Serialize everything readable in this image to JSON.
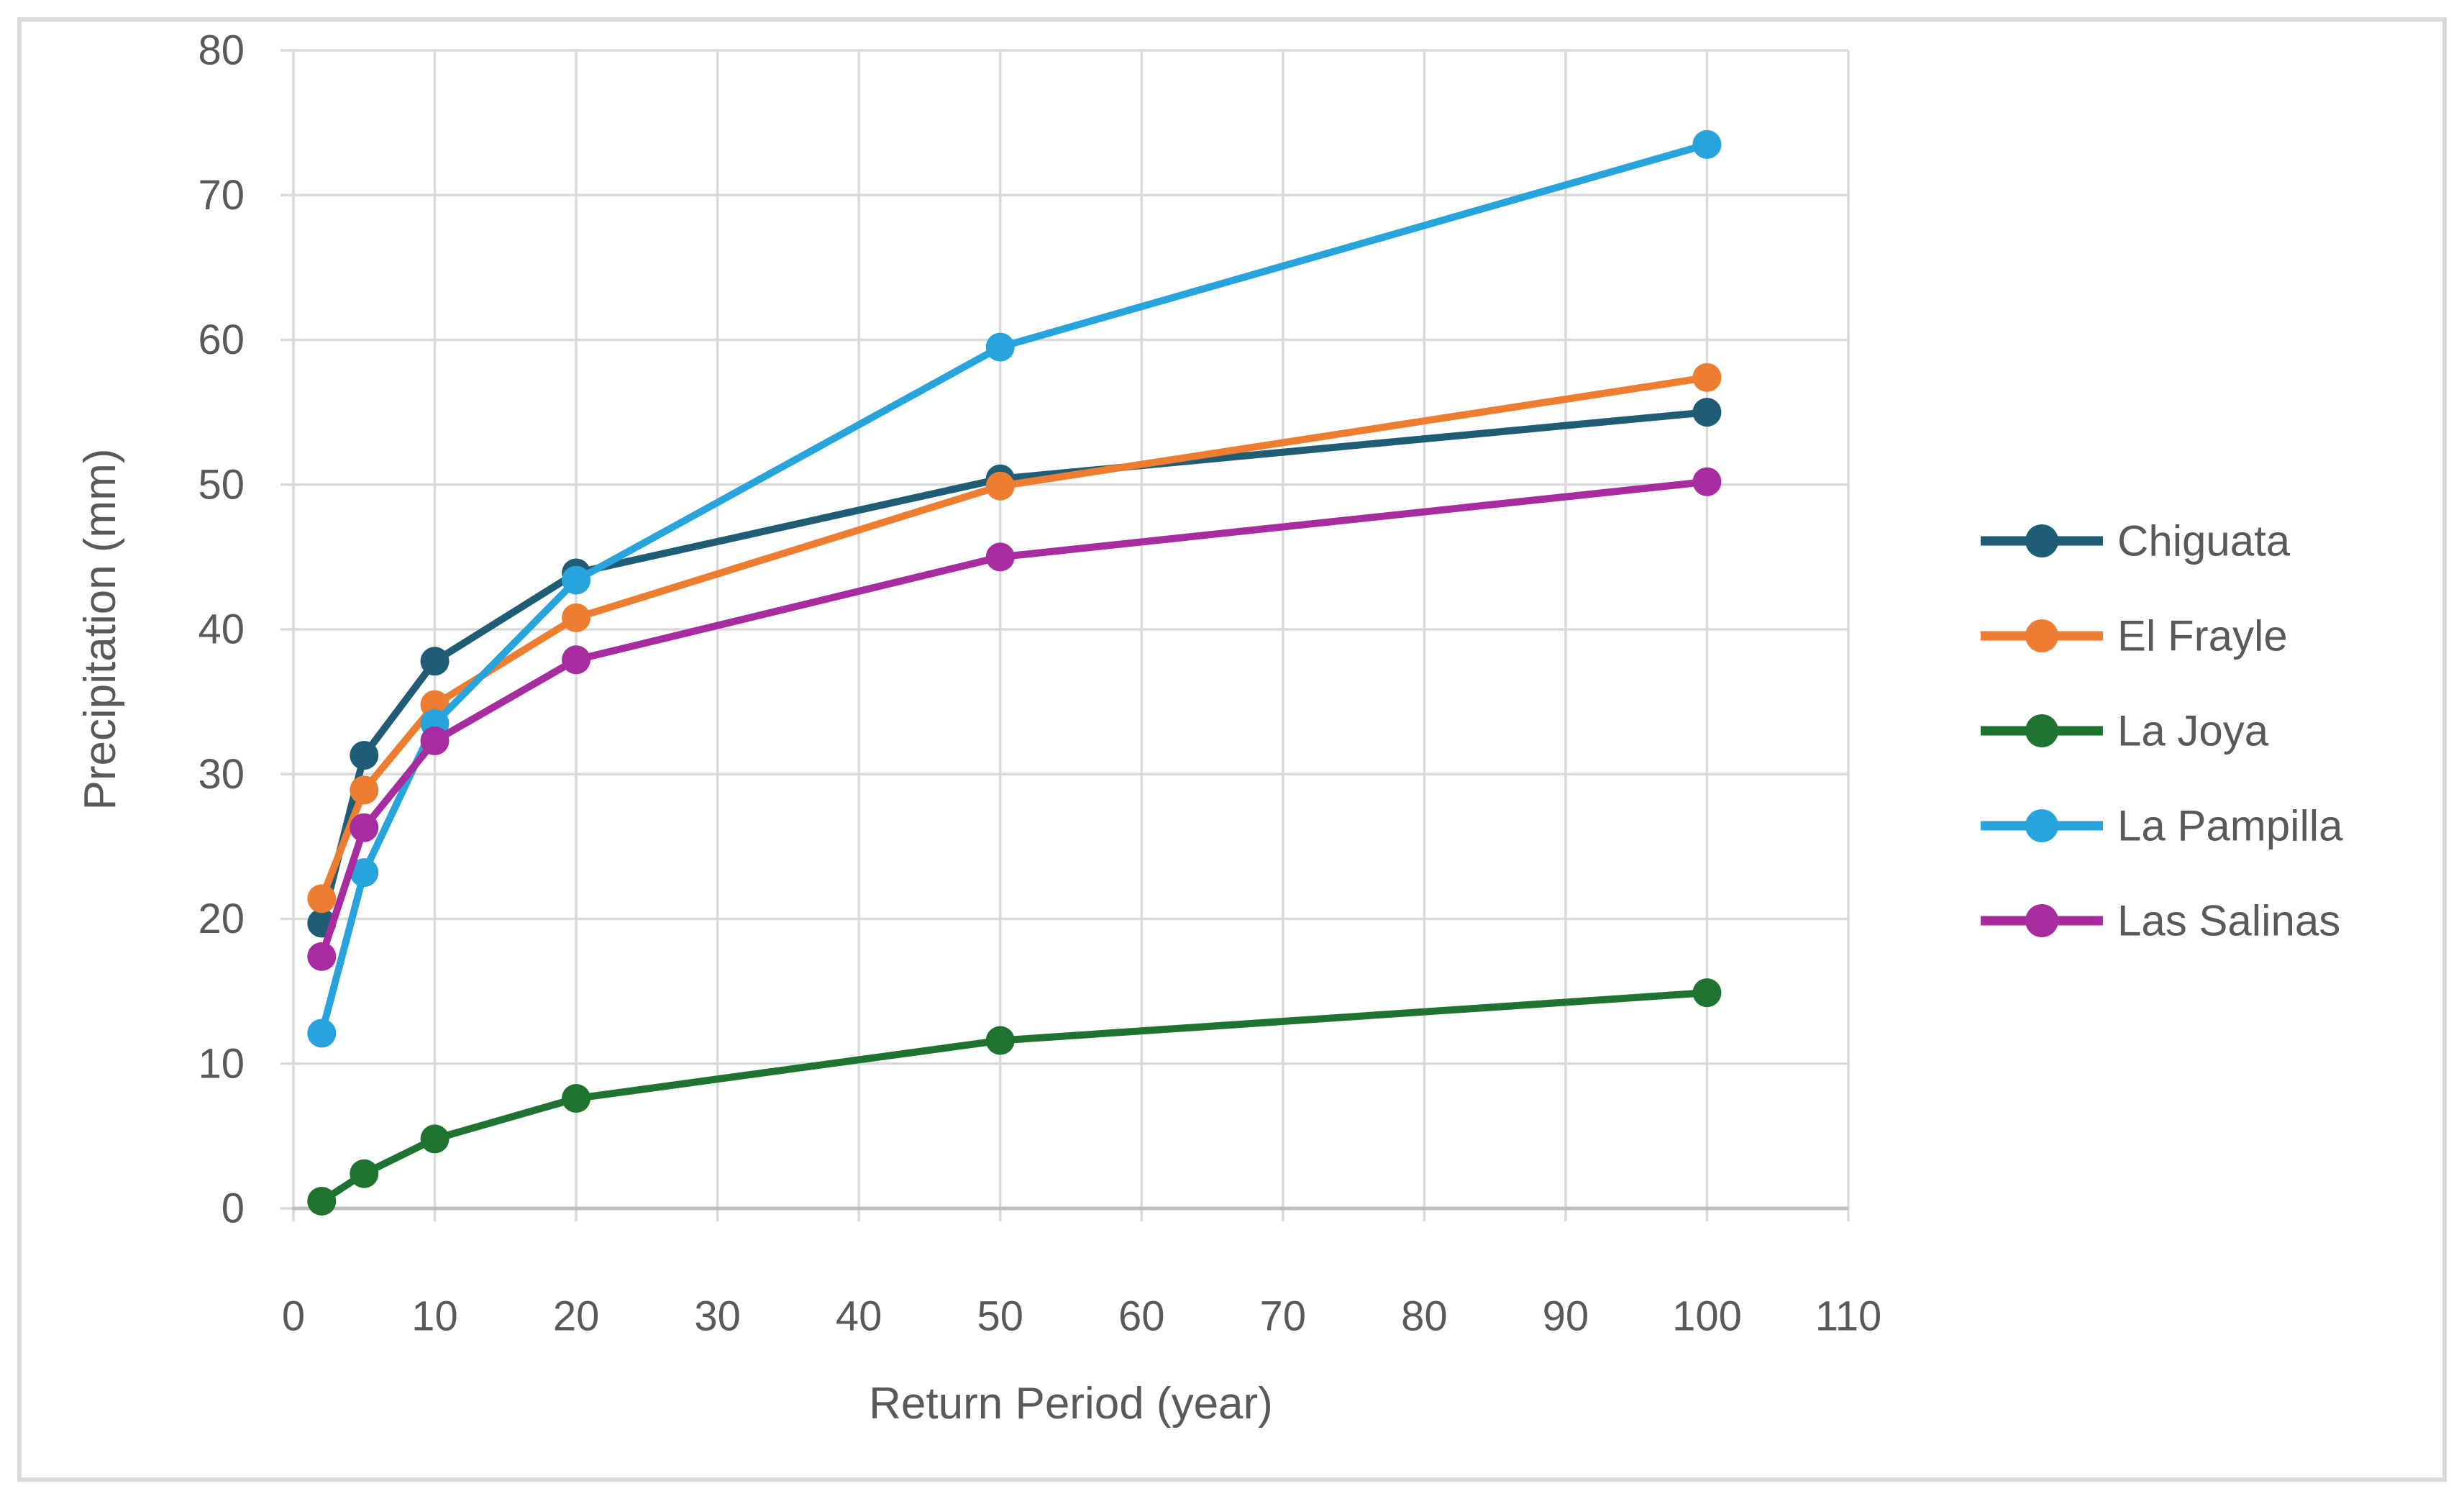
{
  "chart_data": {
    "type": "line",
    "title": "",
    "xlabel": "Return Period (year)",
    "ylabel": "Precipitation (mm)",
    "x": [
      2,
      5,
      10,
      20,
      50,
      100
    ],
    "xlim": [
      0,
      110
    ],
    "ylim": [
      0,
      80
    ],
    "x_ticks": [
      0,
      10,
      20,
      30,
      40,
      50,
      60,
      70,
      80,
      90,
      100,
      110
    ],
    "y_ticks": [
      0,
      10,
      20,
      30,
      40,
      50,
      60,
      70,
      80
    ],
    "grid": true,
    "legend_position": "right",
    "series": [
      {
        "name": "Chiguata",
        "color": "#1F5C75",
        "values": [
          19.7,
          31.3,
          37.8,
          43.9,
          50.4,
          55.0
        ]
      },
      {
        "name": "El Frayle",
        "color": "#ED7D31",
        "values": [
          21.4,
          28.9,
          34.8,
          40.8,
          49.9,
          57.4
        ]
      },
      {
        "name": "La Joya",
        "color": "#1E7330",
        "values": [
          0.5,
          2.4,
          4.8,
          7.6,
          11.6,
          14.9
        ]
      },
      {
        "name": "La Pampilla",
        "color": "#27A4DC",
        "values": [
          12.1,
          23.2,
          33.5,
          43.4,
          59.5,
          73.5
        ]
      },
      {
        "name": "Las Salinas",
        "color": "#A62CA0",
        "values": [
          17.4,
          26.3,
          32.3,
          37.9,
          45.0,
          50.2
        ]
      }
    ],
    "colors": {
      "text": "#595959",
      "gridline": "#D9D9D9",
      "x_axis_line": "#BFBFBF",
      "y_axis_line": "#D9D9D9",
      "tick_mark": "#D9D9D9",
      "frame_border": "#D9D9D9",
      "background": "#FFFFFF"
    }
  }
}
